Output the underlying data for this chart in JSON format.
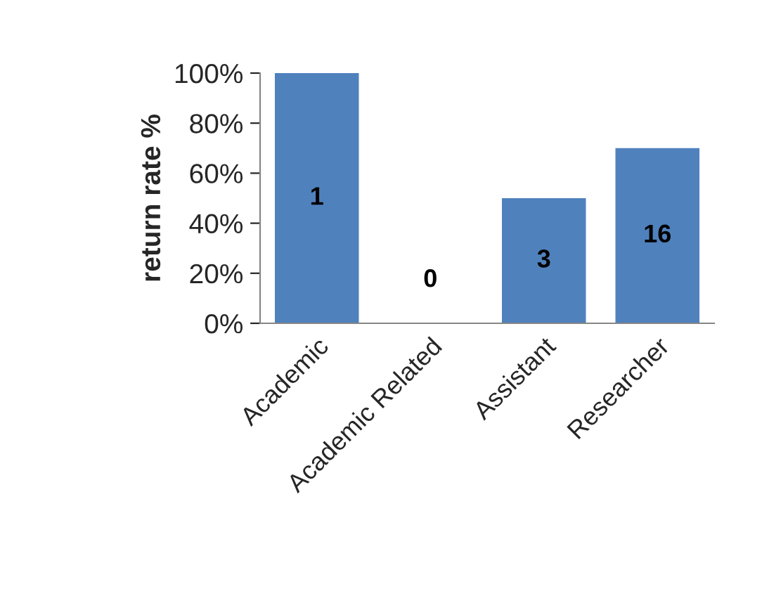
{
  "chart_data": {
    "type": "bar",
    "ylabel": "return rate %",
    "categories": [
      "Academic",
      "Academic Related",
      "Assistant",
      "Researcher"
    ],
    "values": [
      100,
      0,
      50,
      70
    ],
    "annotations": [
      "1",
      "0",
      "3",
      "16"
    ],
    "color": "#4f81bd",
    "ylim": [
      0,
      100
    ],
    "yticks": [
      {
        "value": 0,
        "label": "0%"
      },
      {
        "value": 20,
        "label": "20%"
      },
      {
        "value": 40,
        "label": "40%"
      },
      {
        "value": 60,
        "label": "60%"
      },
      {
        "value": 80,
        "label": "80%"
      },
      {
        "value": 100,
        "label": "100%"
      }
    ],
    "grid": false,
    "legend": false
  }
}
